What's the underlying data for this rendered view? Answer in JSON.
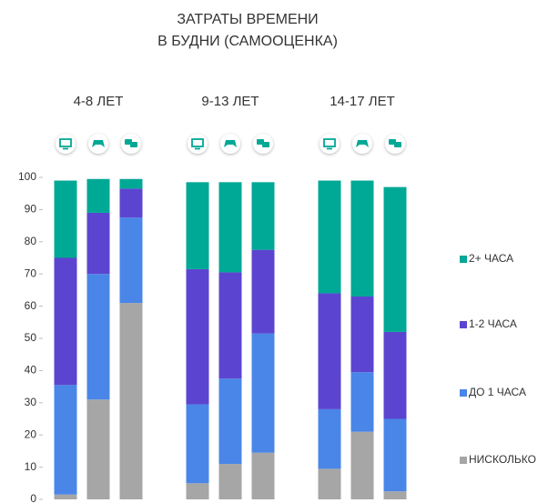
{
  "chart_data": {
    "type": "stacked_bar",
    "title": "ЗАТРАТЫ ВРЕМЕНИ",
    "subtitle": "В БУДНИ (САМООЦЕНКА)",
    "groups": [
      "4-8 ЛЕТ",
      "9-13 ЛЕТ",
      "14-17 ЛЕТ"
    ],
    "categories": [
      null,
      null,
      null,
      null,
      null,
      null,
      null,
      null,
      null
    ],
    "series": [
      {
        "name": "НИСКОЛЬКО",
        "color": "#a6a6a6",
        "values": [
          1.5,
          31,
          61,
          5,
          11,
          14.5,
          9.5,
          21,
          2.5
        ]
      },
      {
        "name": "ДО 1 ЧАСА",
        "color": "#4a86e8",
        "values": [
          34,
          39,
          26.5,
          24.5,
          26.5,
          37,
          18.5,
          18.5,
          22.5
        ]
      },
      {
        "name": "1-2 ЧАСА",
        "color": "#5b45d0",
        "values": [
          39.5,
          19,
          9,
          42,
          33,
          26,
          36,
          23.5,
          27
        ]
      },
      {
        "name": "2+ ЧАСА",
        "color": "#00a896",
        "values": [
          24,
          10.5,
          3,
          27,
          28,
          21,
          35,
          36,
          45
        ]
      }
    ],
    "ylim": [
      0,
      100
    ],
    "yticks": [
      0,
      10,
      20,
      30,
      40,
      50,
      60,
      70,
      80,
      90,
      100
    ],
    "legend": "right"
  }
}
